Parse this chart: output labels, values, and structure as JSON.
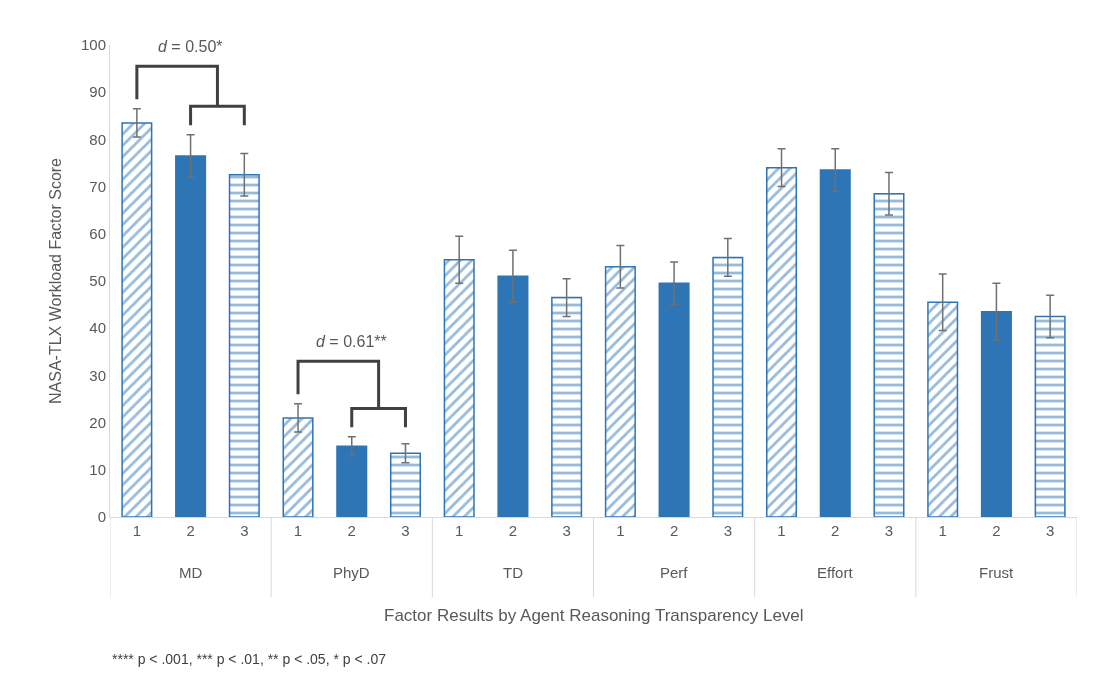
{
  "chart_data": {
    "type": "bar",
    "xlabel": "Factor Results by Agent Reasoning Transparency Level",
    "ylabel": "NASA-TLX Workload Factor Score",
    "categories": [
      "MD",
      "PhyD",
      "TD",
      "Perf",
      "Effort",
      "Frust"
    ],
    "series": [
      {
        "name": "1",
        "color": "#2e75b6",
        "values": [
          83.5,
          21,
          54.5,
          53,
          74,
          45.5
        ],
        "errors": [
          3,
          3,
          5,
          4.5,
          4,
          6
        ]
      },
      {
        "name": "2",
        "color": "#2e75b6",
        "values": [
          76.5,
          15,
          51,
          49.5,
          73.5,
          43.5
        ],
        "errors": [
          4.5,
          2,
          5.5,
          4.5,
          4.5,
          6
        ]
      },
      {
        "name": "3",
        "color": "#2e75b6",
        "values": [
          72.5,
          13.5,
          46.5,
          55,
          68.5,
          42.5
        ],
        "errors": [
          4.5,
          2,
          4,
          4,
          4.5,
          4.5
        ]
      }
    ],
    "ylim": [
      0,
      100
    ],
    "yticks": [
      0,
      10,
      20,
      30,
      40,
      50,
      60,
      70,
      80,
      90,
      100
    ],
    "legend": false,
    "annotations": [
      "d = 0.50*",
      "d = 0.61**",
      "**** p < .001, *** p < .01, ** p < .05, * p < .07"
    ]
  }
}
